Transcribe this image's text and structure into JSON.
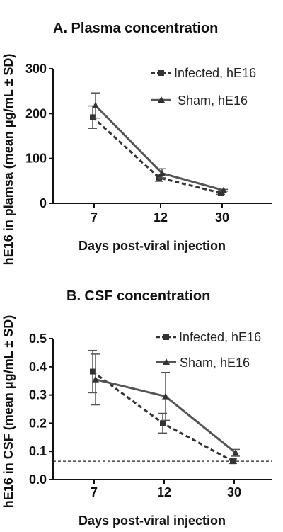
{
  "chart_data": [
    {
      "type": "line",
      "title": "A. Plasma concentration",
      "xlabel": "Days post-viral injection",
      "ylabel": "hE16 in plamsa (mean μg/mL ± SD)",
      "categories": [
        "7",
        "12",
        "30"
      ],
      "ylim": [
        0,
        300
      ],
      "yticks": [
        "0",
        "100",
        "200",
        "300"
      ],
      "legend_position": "top-right",
      "series": [
        {
          "name": "Infected, hE16",
          "style": "dashed",
          "marker": "square",
          "values": [
            192,
            57,
            23
          ],
          "sd": [
            25,
            8,
            3
          ]
        },
        {
          "name": "Sham, hE16",
          "style": "solid",
          "marker": "triangle",
          "values": [
            218,
            67,
            29
          ],
          "sd": [
            28,
            10,
            2
          ]
        }
      ]
    },
    {
      "type": "line",
      "title": "B. CSF concentration",
      "xlabel": "Days post-viral injection",
      "ylabel": "hE16 in CSF (mean μg/mL ± SD)",
      "categories": [
        "7",
        "12",
        "30"
      ],
      "ylim": [
        0,
        0.5
      ],
      "yticks": [
        "0.0",
        "0.1",
        "0.2",
        "0.3",
        "0.4",
        "0.5"
      ],
      "reference_line": 0.065,
      "legend_position": "top-right",
      "series": [
        {
          "name": "Infected, hE16",
          "style": "dashed",
          "marker": "square",
          "values": [
            0.383,
            0.2,
            0.065
          ],
          "sd": [
            0.075,
            0.035,
            0.008
          ]
        },
        {
          "name": "Sham, hE16",
          "style": "solid",
          "marker": "triangle",
          "values": [
            0.355,
            0.295,
            0.095
          ],
          "sd": [
            0.09,
            0.085,
            0.012
          ]
        }
      ]
    }
  ],
  "colors": {
    "infected": "#333333",
    "sham": "#555555",
    "axis": "#111111"
  }
}
